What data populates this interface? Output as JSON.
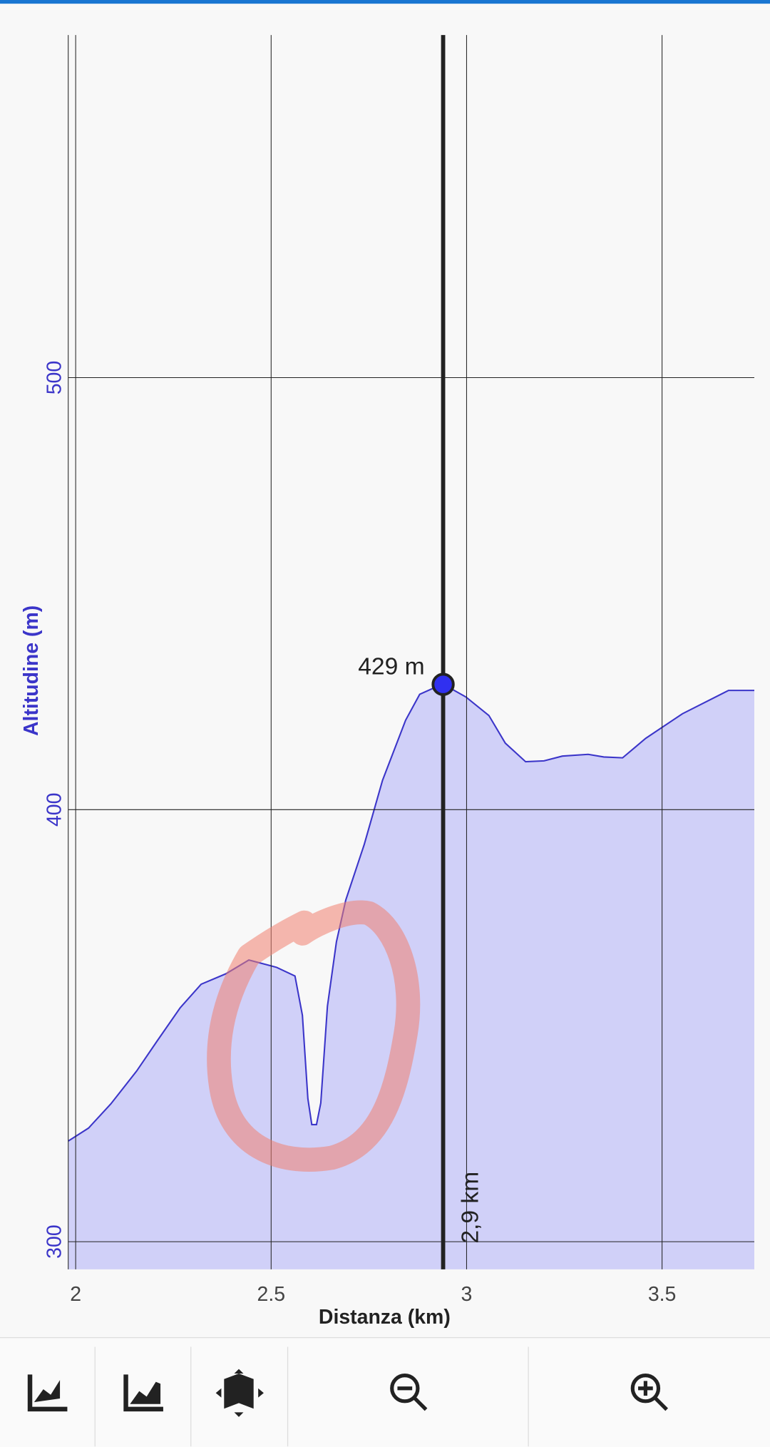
{
  "chart_data": {
    "type": "area",
    "x_label": "Distanza (km)",
    "y_label": "Altitudine (m)",
    "x": [
      1.981,
      2.033,
      2.09,
      2.156,
      2.208,
      2.267,
      2.321,
      2.384,
      2.443,
      2.514,
      2.561,
      2.58,
      2.594,
      2.604,
      2.616,
      2.627,
      2.644,
      2.667,
      2.691,
      2.738,
      2.785,
      2.844,
      2.88,
      2.939,
      2.998,
      3.057,
      3.099,
      3.151,
      3.198,
      3.245,
      3.311,
      3.351,
      3.399,
      3.458,
      3.552,
      3.67,
      3.736
    ],
    "values": [
      323.3,
      326.3,
      331.9,
      339.5,
      346.4,
      354.1,
      359.6,
      362,
      365.2,
      363.5,
      361.5,
      352.4,
      333.1,
      327.1,
      327.1,
      332.1,
      354.5,
      369.4,
      379.1,
      391.9,
      406.8,
      420.7,
      426.7,
      429.1,
      426.1,
      421.8,
      415.4,
      411.1,
      411.3,
      412.4,
      412.8,
      412.2,
      412,
      416.5,
      422.2,
      427.6,
      427.6
    ],
    "color": "#3b35c9",
    "fill_color": "#d0d0f8",
    "xlim": [
      1.981,
      3.736
    ],
    "ylim": [
      293.6,
      579.3
    ],
    "xticks": [
      2,
      2.5,
      3,
      3.5
    ],
    "yticks": [
      300,
      400,
      500
    ],
    "grid": true,
    "cursor": {
      "x": 2.94,
      "y": 429,
      "label": "429 m",
      "x_label": "2,9 km"
    }
  }
}
